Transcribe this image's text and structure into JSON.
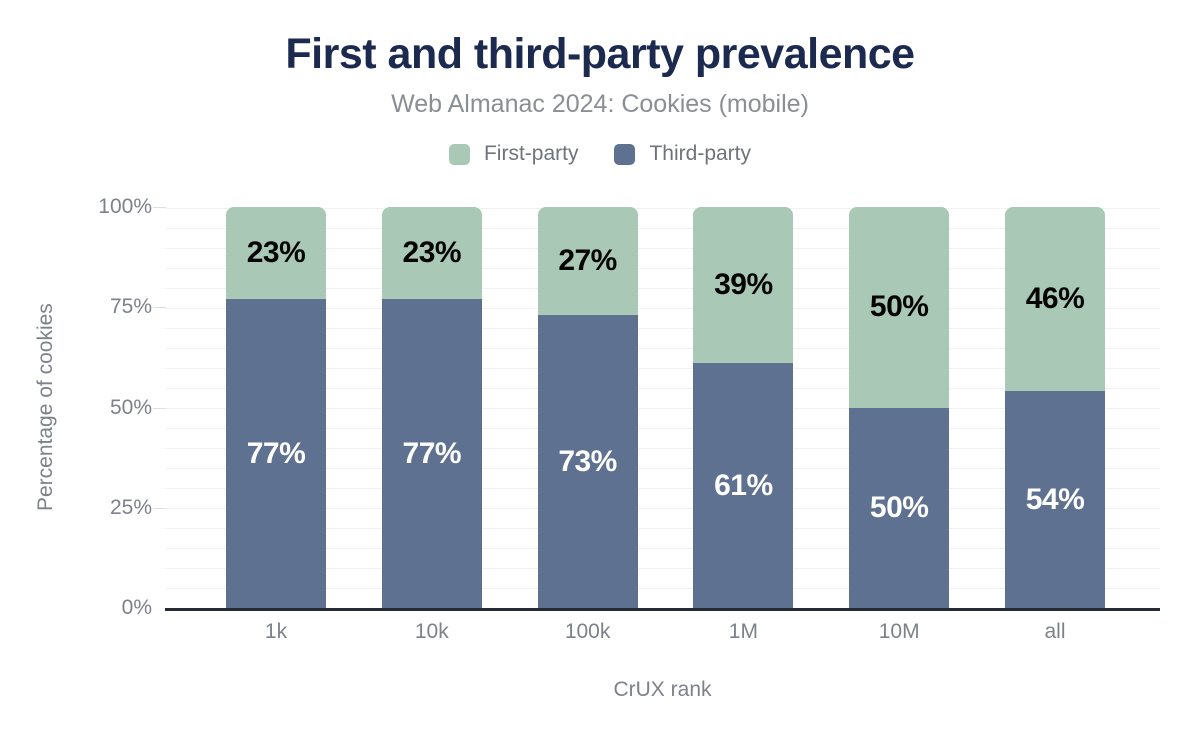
{
  "title": "First and third-party prevalence",
  "subtitle": "Web Almanac 2024: Cookies (mobile)",
  "legend": [
    {
      "label": "First-party",
      "color": "#a9c8b6"
    },
    {
      "label": "Third-party",
      "color": "#5e7190"
    }
  ],
  "colors": {
    "title": "#1b2a4e",
    "first_party": "#a9c8b6",
    "third_party": "#5e7190",
    "axis_line": "#262a33",
    "gridline": "#f1f1f3",
    "muted_text": "#7d828a"
  },
  "chart_data": {
    "type": "bar",
    "stacked": true,
    "title": "First and third-party prevalence",
    "subtitle": "Web Almanac 2024: Cookies (mobile)",
    "categories": [
      "1k",
      "10k",
      "100k",
      "1M",
      "10M",
      "all"
    ],
    "series": [
      {
        "name": "First-party",
        "color": "#a9c8b6",
        "values": [
          23,
          23,
          27,
          39,
          50,
          46
        ]
      },
      {
        "name": "Third-party",
        "color": "#5e7190",
        "values": [
          77,
          77,
          73,
          61,
          50,
          54
        ]
      }
    ],
    "xlabel": "CrUX rank",
    "ylabel": "Percentage of cookies",
    "ylim": [
      0,
      100
    ],
    "yticks_desc": [
      "100%",
      "75%",
      "50%",
      "25%",
      "0%"
    ],
    "minor_grid_step_pct": 5,
    "grid": true,
    "legend_position": "top",
    "value_labels": "shown as percent centered in each segment"
  }
}
